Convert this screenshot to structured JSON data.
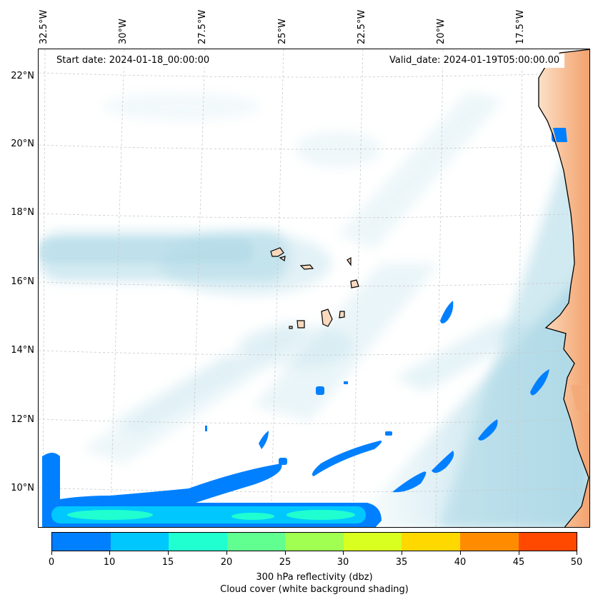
{
  "map": {
    "start_label": "Start date: 2024-01-18_00:00:00",
    "valid_label": "Valid_date: 2024-01-19T05:00:00.00",
    "lon_ticks": [
      "32.5°W",
      "30°W",
      "27.5°W",
      "25°W",
      "22.5°W",
      "20°W",
      "17.5°W"
    ],
    "lat_ticks": [
      "22°N",
      "20°N",
      "18°N",
      "16°N",
      "14°N",
      "12°N",
      "10°N"
    ],
    "region": "Cape Verde Islands and West African coast",
    "colors": {
      "land": "#f9d9be",
      "land_hot": "#f29a62",
      "ocean_cloud": "#acd8e6",
      "grid": "#cccccc",
      "coast": "#000000"
    }
  },
  "colorbar": {
    "title": "300 hPa reflectivity (dbz)",
    "subtitle": "Cloud cover (white background shading)",
    "ticks": [
      "0",
      "10",
      "15",
      "20",
      "25",
      "30",
      "35",
      "40",
      "45",
      "50"
    ],
    "colors": [
      "#0080ff",
      "#00c8ff",
      "#20ffd0",
      "#60ff90",
      "#a0ff50",
      "#d8ff20",
      "#ffd800",
      "#ff8c00",
      "#ff4800"
    ]
  }
}
